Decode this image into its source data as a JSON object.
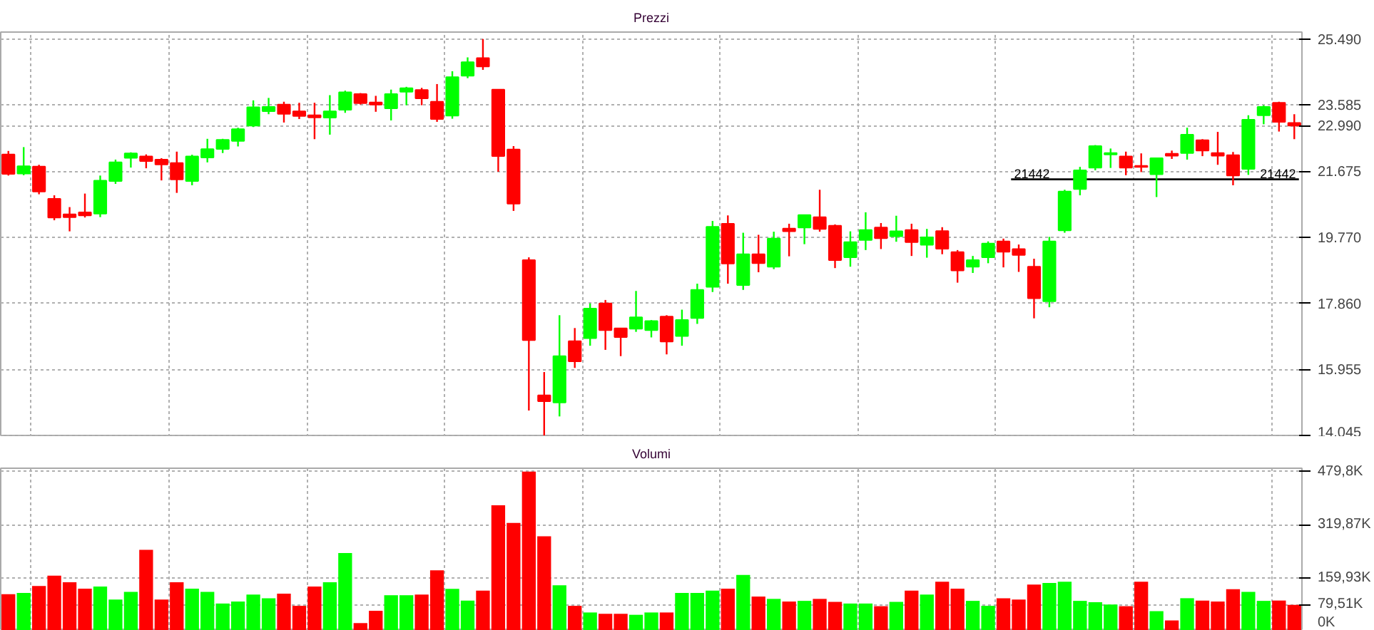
{
  "chart_data": [
    {
      "type": "candlestick",
      "title": "Prezzi",
      "categories": [
        null,
        null,
        null,
        null,
        null,
        null,
        null,
        null,
        null,
        null,
        null,
        null,
        null,
        null,
        null,
        null,
        null,
        null,
        null,
        null,
        null,
        null,
        null,
        null,
        null,
        null,
        null,
        null,
        null,
        null,
        null,
        null,
        null,
        null,
        null,
        null,
        null,
        null,
        null,
        null,
        null,
        null,
        null,
        null,
        null,
        null,
        null,
        null,
        null,
        null,
        null,
        null,
        null,
        null,
        null,
        null,
        null,
        null,
        null,
        null,
        null,
        null,
        null,
        null,
        null,
        null,
        null,
        null,
        null,
        null,
        null,
        null,
        null,
        null,
        null,
        null,
        null,
        null,
        null,
        null,
        null,
        null,
        null,
        null,
        null
      ],
      "ohlc": [
        [
          22160,
          22260,
          21550,
          21600
        ],
        [
          21610,
          22370,
          21560,
          21820
        ],
        [
          21810,
          21860,
          21010,
          21090
        ],
        [
          20880,
          20980,
          20260,
          20340
        ],
        [
          20430,
          20640,
          19940,
          20350
        ],
        [
          20490,
          21030,
          20340,
          20400
        ],
        [
          20450,
          21550,
          20350,
          21400
        ],
        [
          21390,
          22010,
          21310,
          21930
        ],
        [
          22060,
          22220,
          21780,
          22190
        ],
        [
          22100,
          22160,
          21760,
          21970
        ],
        [
          22010,
          22050,
          21410,
          21870
        ],
        [
          21910,
          22240,
          21050,
          21440
        ],
        [
          21390,
          22150,
          21270,
          22100
        ],
        [
          22070,
          22610,
          21930,
          22310
        ],
        [
          22320,
          22610,
          22200,
          22580
        ],
        [
          22550,
          22930,
          22390,
          22890
        ],
        [
          22990,
          23720,
          22950,
          23520
        ],
        [
          23410,
          23790,
          23320,
          23530
        ],
        [
          23600,
          23680,
          23080,
          23330
        ],
        [
          23400,
          23650,
          23180,
          23270
        ],
        [
          23290,
          23650,
          22600,
          23230
        ],
        [
          23220,
          23870,
          22730,
          23400
        ],
        [
          23450,
          24000,
          23360,
          23950
        ],
        [
          23900,
          23930,
          23600,
          23640
        ],
        [
          23660,
          23850,
          23390,
          23600
        ],
        [
          23490,
          24030,
          23140,
          23900
        ],
        [
          23970,
          24110,
          23580,
          24070
        ],
        [
          24020,
          24080,
          23580,
          23780
        ],
        [
          23680,
          24190,
          23100,
          23180
        ],
        [
          23280,
          24560,
          23190,
          24390
        ],
        [
          24430,
          24960,
          24360,
          24820
        ],
        [
          24940,
          25490,
          24600,
          24700
        ],
        [
          24030,
          24040,
          21660,
          22110
        ],
        [
          22300,
          22400,
          20530,
          20740
        ],
        [
          19110,
          19190,
          14770,
          16800
        ],
        [
          15210,
          15880,
          14050,
          15040
        ],
        [
          15000,
          17520,
          14600,
          16340
        ],
        [
          16770,
          17150,
          16000,
          16190
        ],
        [
          16860,
          17860,
          16640,
          17710
        ],
        [
          17860,
          17960,
          16520,
          17090
        ],
        [
          17140,
          17140,
          16340,
          16890
        ],
        [
          17130,
          18220,
          17040,
          17460
        ],
        [
          17090,
          17380,
          16880,
          17350
        ],
        [
          17480,
          17520,
          16390,
          16760
        ],
        [
          16920,
          17680,
          16640,
          17380
        ],
        [
          17440,
          18430,
          17270,
          18250
        ],
        [
          18340,
          20240,
          18190,
          20070
        ],
        [
          20160,
          20400,
          18430,
          19010
        ],
        [
          18390,
          19900,
          18250,
          19280
        ],
        [
          19280,
          19840,
          18760,
          19020
        ],
        [
          18920,
          19930,
          18850,
          19730
        ],
        [
          20020,
          20160,
          19220,
          19940
        ],
        [
          20050,
          20410,
          19570,
          20410
        ],
        [
          20350,
          21140,
          19930,
          20010
        ],
        [
          20100,
          20140,
          18880,
          19110
        ],
        [
          19190,
          19940,
          18920,
          19630
        ],
        [
          19690,
          20490,
          19400,
          19980
        ],
        [
          20050,
          20180,
          19430,
          19740
        ],
        [
          19800,
          20390,
          19640,
          19940
        ],
        [
          19980,
          20160,
          19230,
          19630
        ],
        [
          19550,
          20010,
          19180,
          19770
        ],
        [
          19950,
          20060,
          19280,
          19440
        ],
        [
          19340,
          19400,
          18460,
          18810
        ],
        [
          18920,
          19230,
          18740,
          19110
        ],
        [
          19190,
          19650,
          19020,
          19590
        ],
        [
          19650,
          19730,
          18900,
          19350
        ],
        [
          19430,
          19560,
          18770,
          19260
        ],
        [
          18920,
          19150,
          17430,
          18010
        ],
        [
          17920,
          19780,
          17750,
          19650
        ],
        [
          19970,
          21140,
          19900,
          21090
        ],
        [
          21160,
          21800,
          20980,
          21700
        ],
        [
          21780,
          22430,
          21700,
          22400
        ],
        [
          22160,
          22330,
          21770,
          22200
        ],
        [
          22100,
          22240,
          21560,
          21780
        ],
        [
          21830,
          22190,
          21650,
          21800
        ],
        [
          21590,
          22070,
          20930,
          22050
        ],
        [
          22180,
          22270,
          22030,
          22120
        ],
        [
          22200,
          22930,
          22010,
          22730
        ],
        [
          22570,
          22600,
          22110,
          22270
        ],
        [
          22200,
          22810,
          21860,
          22120
        ],
        [
          22140,
          22230,
          21270,
          21550
        ],
        [
          21740,
          23290,
          21570,
          23160
        ],
        [
          23290,
          23580,
          23030,
          23530
        ],
        [
          23650,
          23680,
          22820,
          23100
        ],
        [
          23070,
          23320,
          22600,
          22990
        ]
      ],
      "colors": [
        "#ff0000",
        "#00ff00",
        "#ff0000",
        "#ff0000",
        "#ff0000",
        "#ff0000",
        "#00ff00",
        "#00ff00",
        "#00ff00",
        "#ff0000",
        "#ff0000",
        "#ff0000",
        "#00ff00",
        "#00ff00",
        "#00ff00",
        "#00ff00",
        "#00ff00",
        "#00ff00",
        "#ff0000",
        "#ff0000",
        "#ff0000",
        "#00ff00",
        "#00ff00",
        "#ff0000",
        "#ff0000",
        "#00ff00",
        "#00ff00",
        "#ff0000",
        "#ff0000",
        "#00ff00",
        "#00ff00",
        "#ff0000",
        "#ff0000",
        "#ff0000",
        "#ff0000",
        "#ff0000",
        "#00ff00",
        "#ff0000",
        "#00ff00",
        "#ff0000",
        "#ff0000",
        "#00ff00",
        "#00ff00",
        "#ff0000",
        "#00ff00",
        "#00ff00",
        "#00ff00",
        "#ff0000",
        "#00ff00",
        "#ff0000",
        "#00ff00",
        "#ff0000",
        "#00ff00",
        "#ff0000",
        "#ff0000",
        "#00ff00",
        "#00ff00",
        "#ff0000",
        "#00ff00",
        "#ff0000",
        "#00ff00",
        "#ff0000",
        "#ff0000",
        "#00ff00",
        "#00ff00",
        "#ff0000",
        "#ff0000",
        "#ff0000",
        "#00ff00",
        "#00ff00",
        "#00ff00",
        "#00ff00",
        "#00ff00",
        "#ff0000",
        "#ff0000",
        "#00ff00",
        "#ff0000",
        "#00ff00",
        "#ff0000",
        "#ff0000",
        "#ff0000",
        "#00ff00",
        "#00ff00",
        "#ff0000",
        "#ff0000"
      ],
      "ylim": [
        14010,
        25690
      ],
      "yticks": [
        {
          "value": 14045,
          "label": "14.045"
        },
        {
          "value": 15955,
          "label": "15.955"
        },
        {
          "value": 17860,
          "label": "17.860"
        },
        {
          "value": 19770,
          "label": "19.770"
        },
        {
          "value": 21675,
          "label": "21.675"
        },
        {
          "value": 22990,
          "label": "22.990"
        },
        {
          "value": 23585,
          "label": "23.585"
        },
        {
          "value": 25490,
          "label": "25.490"
        }
      ],
      "ref_lines": [
        {
          "axis": "y",
          "value": 21442,
          "label": "21442",
          "color": "#000000"
        }
      ],
      "grid": true,
      "tick_labels": "y"
    },
    {
      "type": "bar",
      "title": "Volumi",
      "categories": [
        null,
        null,
        null,
        null,
        null,
        null,
        null,
        null,
        null,
        null,
        null,
        null,
        null,
        null,
        null,
        null,
        null,
        null,
        null,
        null,
        null,
        null,
        null,
        null,
        null,
        null,
        null,
        null,
        null,
        null,
        null,
        null,
        null,
        null,
        null,
        null,
        null,
        null,
        null,
        null,
        null,
        null,
        null,
        null,
        null,
        null,
        null,
        null,
        null,
        null,
        null,
        null,
        null,
        null,
        null,
        null,
        null,
        null,
        null,
        null,
        null,
        null,
        null,
        null,
        null,
        null,
        null,
        null,
        null,
        null,
        null,
        null,
        null,
        null,
        null,
        null,
        null,
        null,
        null,
        null,
        null,
        null,
        null,
        null,
        null
      ],
      "values": [
        110,
        114,
        135,
        166,
        146,
        127,
        133,
        94,
        117,
        244,
        94,
        146,
        127,
        117,
        82,
        88,
        109,
        98,
        112,
        75,
        133,
        146,
        234,
        23,
        60,
        107,
        107,
        109,
        182,
        126,
        91,
        121,
        378,
        325,
        480,
        285,
        137,
        75,
        55,
        51,
        51,
        48,
        55,
        55,
        114,
        114,
        121,
        127,
        168,
        103,
        96,
        88,
        90,
        96,
        87,
        82,
        82,
        74,
        87,
        121,
        109,
        148,
        127,
        90,
        75,
        98,
        94,
        139,
        144,
        148,
        90,
        86,
        79,
        74,
        148,
        59,
        31,
        98,
        91,
        88,
        125,
        117,
        90,
        91,
        78
      ],
      "colors": [
        "#ff0000",
        "#00ff00",
        "#ff0000",
        "#ff0000",
        "#ff0000",
        "#ff0000",
        "#00ff00",
        "#00ff00",
        "#00ff00",
        "#ff0000",
        "#ff0000",
        "#ff0000",
        "#00ff00",
        "#00ff00",
        "#00ff00",
        "#00ff00",
        "#00ff00",
        "#00ff00",
        "#ff0000",
        "#ff0000",
        "#ff0000",
        "#00ff00",
        "#00ff00",
        "#ff0000",
        "#ff0000",
        "#00ff00",
        "#00ff00",
        "#ff0000",
        "#ff0000",
        "#00ff00",
        "#00ff00",
        "#ff0000",
        "#ff0000",
        "#ff0000",
        "#ff0000",
        "#ff0000",
        "#00ff00",
        "#ff0000",
        "#00ff00",
        "#ff0000",
        "#ff0000",
        "#00ff00",
        "#00ff00",
        "#ff0000",
        "#00ff00",
        "#00ff00",
        "#00ff00",
        "#ff0000",
        "#00ff00",
        "#ff0000",
        "#00ff00",
        "#ff0000",
        "#00ff00",
        "#ff0000",
        "#ff0000",
        "#00ff00",
        "#00ff00",
        "#ff0000",
        "#00ff00",
        "#ff0000",
        "#00ff00",
        "#ff0000",
        "#ff0000",
        "#00ff00",
        "#00ff00",
        "#ff0000",
        "#ff0000",
        "#ff0000",
        "#00ff00",
        "#00ff00",
        "#00ff00",
        "#00ff00",
        "#00ff00",
        "#ff0000",
        "#ff0000",
        "#00ff00",
        "#ff0000",
        "#00ff00",
        "#ff0000",
        "#ff0000",
        "#ff0000",
        "#00ff00",
        "#00ff00",
        "#ff0000",
        "#ff0000"
      ],
      "ylim": [
        0,
        490
      ],
      "yticks": [
        {
          "value": 0,
          "label": "0K"
        },
        {
          "value": 79.51,
          "label": "79,51K"
        },
        {
          "value": 159.93,
          "label": "159,93K"
        },
        {
          "value": 319.87,
          "label": "319,87K"
        },
        {
          "value": 479.8,
          "label": "479,8K"
        }
      ],
      "grid": true,
      "tick_labels": "y"
    }
  ]
}
